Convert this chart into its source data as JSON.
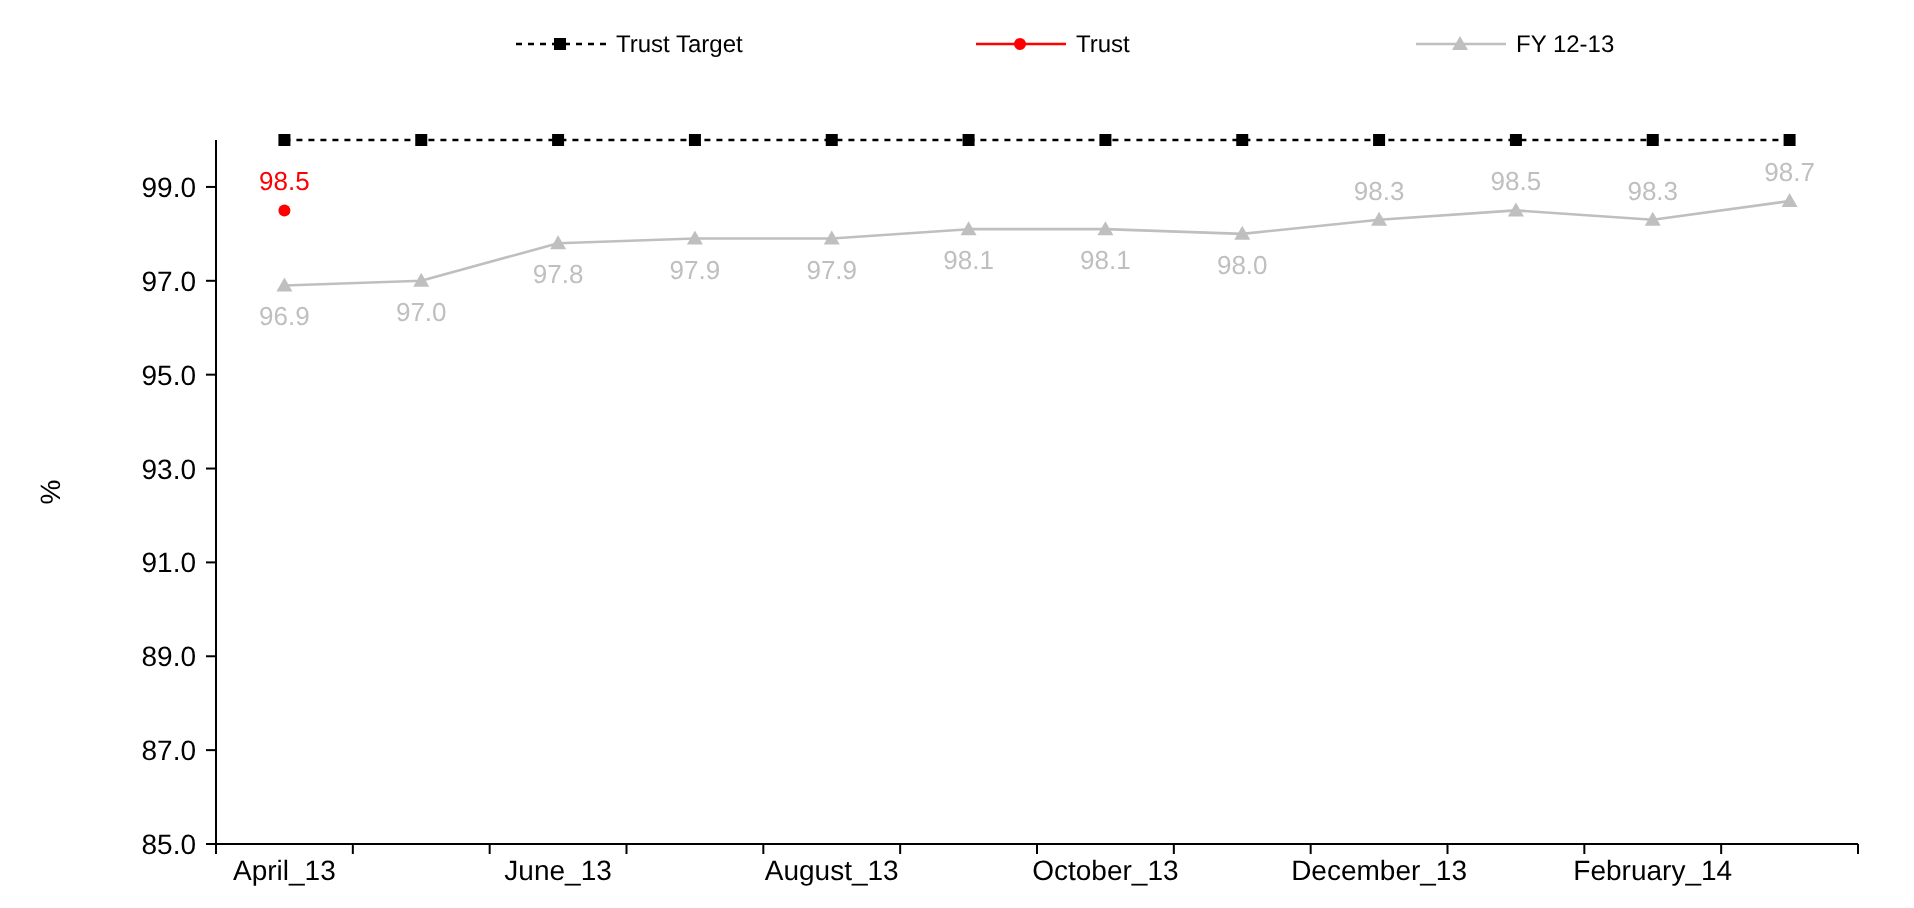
{
  "chart_data": {
    "type": "line",
    "ylabel": "%",
    "categories": [
      "April_13",
      null,
      "June_13",
      null,
      "August_13",
      null,
      "October_13",
      null,
      "December_13",
      null,
      "February_14",
      null
    ],
    "series": [
      {
        "name": "Trust Target",
        "color": "#000000",
        "values": [
          100,
          100,
          100,
          100,
          100,
          100,
          100,
          100,
          100,
          100,
          100,
          100
        ],
        "marker": "square",
        "line_style": "dashed"
      },
      {
        "name": "Trust",
        "color": "#ff0000",
        "values": [
          98.5,
          null,
          null,
          null,
          null,
          null,
          null,
          null,
          null,
          null,
          null,
          null
        ],
        "marker": "circle",
        "line_style": "solid",
        "value_labels": [
          "98.5",
          null,
          null,
          null,
          null,
          null,
          null,
          null,
          null,
          null,
          null,
          null
        ]
      },
      {
        "name": "FY 12-13",
        "color": "#bfbfbf",
        "values": [
          96.9,
          97.0,
          97.8,
          97.9,
          97.9,
          98.1,
          98.1,
          98.0,
          98.3,
          98.5,
          98.3,
          98.7
        ],
        "marker": "triangle",
        "line_style": "solid",
        "value_labels": [
          "96.9",
          "97.0",
          "97.8",
          "97.9",
          "97.9",
          "98.1",
          "98.1",
          "98.0",
          "98.3",
          "98.5",
          "98.3",
          "98.7"
        ]
      }
    ],
    "ylim": [
      85,
      100
    ],
    "yticks": [
      {
        "value": 85,
        "label": "85.0"
      },
      {
        "value": 87,
        "label": "87.0"
      },
      {
        "value": 89,
        "label": "89.0"
      },
      {
        "value": 91,
        "label": "91.0"
      },
      {
        "value": 93,
        "label": "93.0"
      },
      {
        "value": 95,
        "label": "95.0"
      },
      {
        "value": 97,
        "label": "97.0"
      },
      {
        "value": 99,
        "label": "99.0"
      }
    ],
    "grid": false,
    "legend": "top"
  }
}
